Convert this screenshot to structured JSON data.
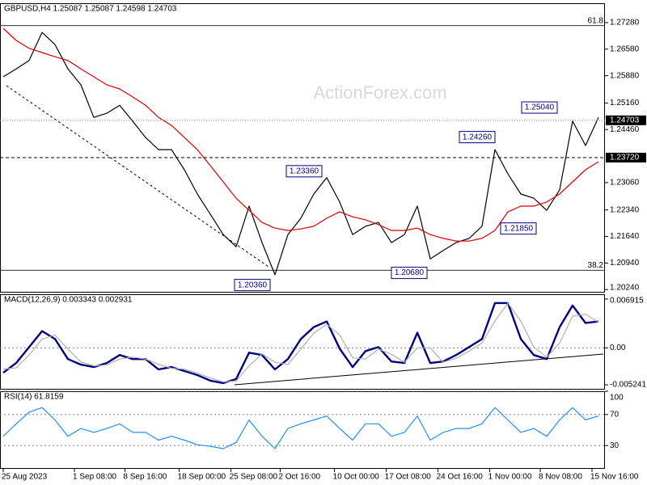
{
  "chart_data": [
    {
      "type": "line",
      "title": "GBPUSD,H4  1.25087 1.25087 1.24598 1.24703",
      "watermark": "ActionForex.com",
      "ylim": [
        1.2016,
        1.2779
      ],
      "yticks": [
        {
          "value": 1.2728,
          "label": "1.27280"
        },
        {
          "value": 1.2658,
          "label": "1.26580"
        },
        {
          "value": 1.2588,
          "label": "1.25880"
        },
        {
          "value": 1.2516,
          "label": "1.25160"
        },
        {
          "value": 1.2446,
          "label": "1.24460"
        },
        {
          "value": 1.2306,
          "label": "1.23060"
        },
        {
          "value": 1.2234,
          "label": "1.22340"
        },
        {
          "value": 1.2164,
          "label": "1.21640"
        },
        {
          "value": 1.2094,
          "label": "1.20940"
        },
        {
          "value": 1.2024,
          "label": "1.20240"
        }
      ],
      "xlim": [
        0,
        46
      ],
      "series": [
        {
          "color": "#000000",
          "values": [
            1.2585,
            1.2606,
            1.2628,
            1.2702,
            1.267,
            1.2606,
            1.2564,
            1.2478,
            1.2489,
            1.251,
            1.2468,
            1.2425,
            1.2393,
            1.2393,
            1.234,
            1.2276,
            1.2223,
            1.2169,
            1.2137,
            1.2244,
            1.2148,
            1.2063,
            1.2169,
            1.2212,
            1.2276,
            1.2319,
            1.2255,
            1.2169,
            1.2191,
            1.2201,
            1.2148,
            1.2169,
            1.2244,
            1.2105,
            1.2127,
            1.2148,
            1.2159,
            1.2191,
            1.2393,
            1.2329,
            1.2276,
            1.2265,
            1.2233,
            1.2287,
            1.2468,
            1.2404,
            1.2478
          ]
        },
        {
          "color": "#e00000",
          "values": [
            1.2713,
            1.2681,
            1.266,
            1.2649,
            1.2638,
            1.2628,
            1.2606,
            1.2585,
            1.2564,
            1.2553,
            1.2532,
            1.251,
            1.2478,
            1.2457,
            1.2425,
            1.2393,
            1.2351,
            1.2308,
            1.2265,
            1.2233,
            1.2201,
            1.2186,
            1.218,
            1.2184,
            1.2191,
            1.2212,
            1.2229,
            1.2216,
            1.2208,
            1.2195,
            1.218,
            1.218,
            1.2186,
            1.2169,
            1.2159,
            1.2152,
            1.2152,
            1.2159,
            1.218,
            1.2229,
            1.2244,
            1.2244,
            1.2255,
            1.2276,
            1.2308,
            1.234,
            1.2361
          ]
        }
      ],
      "fib_levels": [
        {
          "label": "61.8",
          "price": 1.272
        },
        {
          "label": "38.2",
          "price": 1.2075
        }
      ],
      "price_lines": [
        {
          "value": 1.24703,
          "label": "1.24703",
          "style": "dotted"
        },
        {
          "value": 1.2372,
          "label": "1.23720",
          "style": "dashed"
        }
      ],
      "annotations": [
        {
          "value": 1.2504,
          "label": "1.25040"
        },
        {
          "value": 1.2426,
          "label": "1.24260"
        },
        {
          "value": 1.2336,
          "label": "1.23360"
        },
        {
          "value": 1.2185,
          "label": "1.21850"
        },
        {
          "value": 1.2068,
          "label": "1.20680"
        },
        {
          "value": 1.2036,
          "label": "1.20360"
        }
      ]
    },
    {
      "type": "line",
      "title": "MACD(12,26,9) 0.003343 0.002931",
      "ylim": [
        -0.00592,
        0.0076
      ],
      "yticks": [
        0.006915,
        {
          "value": 0,
          "label": "0.00"
        },
        -0.005241
      ],
      "zero_line": true,
      "xlim": [
        0,
        46
      ],
      "series": [
        {
          "color": "#000080",
          "values": [
            -0.00352,
            -0.00215,
            0.00011,
            0.00238,
            0.00125,
            -0.00159,
            -0.00238,
            -0.00272,
            -0.00215,
            -0.00102,
            -0.00159,
            -0.00159,
            -0.00306,
            -0.00272,
            -0.00329,
            -0.00386,
            -0.00465,
            -0.00499,
            -0.00442,
            -0.00068,
            -0.00102,
            -0.00306,
            -0.00159,
            0.00125,
            0.00295,
            0.00374,
            -0.00011,
            -0.00272,
            -0.00045,
            0.00011,
            -0.00193,
            -0.00215,
            0.00215,
            -0.00215,
            -0.00193,
            -0.00102,
            0.00011,
            0.00125,
            0.00635,
            0.00635,
            0.00125,
            -0.00102,
            -0.00159,
            0.00295,
            0.00601,
            0.00352,
            0.00374
          ]
        },
        {
          "color": "#b0b0b0",
          "values": [
            -0.003,
            -0.00284,
            -0.00102,
            0.00125,
            0.00182,
            -0.00017,
            -0.00199,
            -0.00255,
            -0.00244,
            -0.00159,
            -0.00131,
            -0.00159,
            -0.00233,
            -0.00289,
            -0.00301,
            -0.00358,
            -0.00426,
            -0.00482,
            -0.00471,
            -0.00255,
            -0.00085,
            -0.00204,
            -0.00233,
            -0.00017,
            0.0021,
            0.00335,
            0.00182,
            -0.00142,
            -0.00159,
            -0.00017,
            -0.00091,
            -0.00204,
            0.0,
            0.0,
            -0.00204,
            -0.00148,
            -0.00045,
            0.00068,
            0.0038,
            0.00635,
            0.0038,
            0.00012,
            -0.00131,
            0.00068,
            0.00448,
            0.00477,
            0.00363
          ]
        }
      ]
    },
    {
      "type": "line",
      "title": "RSI(14) 61.8159",
      "ylim": [
        0,
        100
      ],
      "yticks": [
        100,
        70,
        30
      ],
      "grid": true,
      "xlim": [
        0,
        46
      ],
      "xticks": [
        {
          "value": 0,
          "label": "25 Aug 2023"
        },
        {
          "value": 5.5,
          "label": "1 Sep 08:00"
        },
        {
          "value": 9.4,
          "label": "8 Sep 16:00"
        },
        {
          "value": 13.6,
          "label": "18 Sep 00:00"
        },
        {
          "value": 17.6,
          "label": "25 Sep 08:00"
        },
        {
          "value": 21.4,
          "label": "2 Oct 16:00"
        },
        {
          "value": 25.6,
          "label": "10 Oct 00:00"
        },
        {
          "value": 29.6,
          "label": "17 Oct 08:00"
        },
        {
          "value": 33.6,
          "label": "24 Oct 16:00"
        },
        {
          "value": 37.6,
          "label": "1 Nov 00:00"
        },
        {
          "value": 41.5,
          "label": "8 Nov 08:00"
        },
        {
          "value": 45.5,
          "label": "15 Nov 16:00"
        }
      ],
      "series": [
        {
          "color": "#1e90ff",
          "values": [
            42,
            58,
            73,
            79,
            63,
            42,
            52,
            47,
            52,
            58,
            47,
            47,
            37,
            42,
            37,
            31,
            29,
            26,
            34,
            63,
            42,
            26,
            52,
            58,
            63,
            68,
            52,
            37,
            58,
            58,
            42,
            47,
            68,
            37,
            47,
            52,
            52,
            58,
            79,
            63,
            47,
            52,
            42,
            63,
            79,
            63,
            68
          ]
        }
      ]
    }
  ]
}
